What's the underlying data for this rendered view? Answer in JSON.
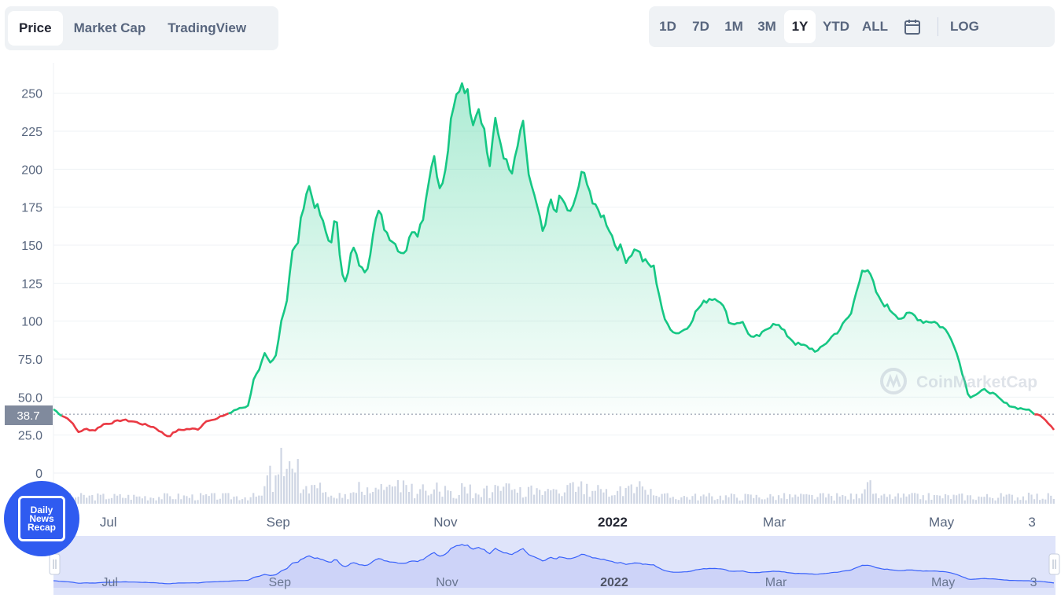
{
  "tabs": [
    {
      "label": "Price",
      "active": true
    },
    {
      "label": "Market Cap",
      "active": false
    },
    {
      "label": "TradingView",
      "active": false
    }
  ],
  "ranges": [
    {
      "label": "1D",
      "active": false
    },
    {
      "label": "7D",
      "active": false
    },
    {
      "label": "1M",
      "active": false
    },
    {
      "label": "3M",
      "active": false
    },
    {
      "label": "1Y",
      "active": true
    },
    {
      "label": "YTD",
      "active": false
    },
    {
      "label": "ALL",
      "active": false
    }
  ],
  "log_label": "LOG",
  "calendar_icon": "calendar-icon",
  "watermark": "CoinMarketCap",
  "badge": {
    "line1": "Daily",
    "line2": "News",
    "line3": "Recap"
  },
  "colors": {
    "up": "#16c784",
    "down": "#ea3943",
    "grid": "#eff2f5",
    "axis_text": "#58667e",
    "navigator_fill": "#dfe4fa",
    "navigator_line": "#3861fb",
    "price_tag": "#808a9d",
    "volume": "#cfd6e4"
  },
  "chart_data": {
    "type": "area",
    "ylim": [
      0,
      270
    ],
    "yticks": [
      "0",
      "25.0",
      "50.0",
      "75.0",
      "100",
      "125",
      "150",
      "175",
      "200",
      "225",
      "250"
    ],
    "ytick_values": [
      0,
      25,
      50,
      75,
      100,
      125,
      150,
      175,
      200,
      225,
      250
    ],
    "xticks": [
      {
        "label": "Jul",
        "date": "2021-07-01",
        "bold": false
      },
      {
        "label": "Sep",
        "date": "2021-09-01",
        "bold": false
      },
      {
        "label": "Nov",
        "date": "2021-11-01",
        "bold": false
      },
      {
        "label": "2022",
        "date": "2022-01-01",
        "bold": true
      },
      {
        "label": "Mar",
        "date": "2022-03-01",
        "bold": false
      },
      {
        "label": "May",
        "date": "2022-05-01",
        "bold": false
      },
      {
        "label": "3",
        "date": "2022-06-03",
        "bold": false
      }
    ],
    "x_range": [
      "2021-06-11",
      "2022-06-11"
    ],
    "baseline_price": 38.7,
    "baseline_label": "38.7",
    "log_scale": false,
    "grid": true,
    "series": [
      {
        "values": [
          [
            "2021-06-11",
            42
          ],
          [
            "2021-06-14",
            38
          ],
          [
            "2021-06-17",
            35
          ],
          [
            "2021-06-20",
            27
          ],
          [
            "2021-06-23",
            29
          ],
          [
            "2021-06-26",
            28
          ],
          [
            "2021-06-29",
            32
          ],
          [
            "2021-07-02",
            33
          ],
          [
            "2021-07-06",
            35
          ],
          [
            "2021-07-10",
            34
          ],
          [
            "2021-07-14",
            32
          ],
          [
            "2021-07-18",
            30
          ],
          [
            "2021-07-21",
            26
          ],
          [
            "2021-07-23",
            24
          ],
          [
            "2021-07-26",
            28
          ],
          [
            "2021-07-30",
            29
          ],
          [
            "2021-08-03",
            29
          ],
          [
            "2021-08-06",
            35
          ],
          [
            "2021-08-09",
            35
          ],
          [
            "2021-08-12",
            38
          ],
          [
            "2021-08-15",
            40
          ],
          [
            "2021-08-18",
            43
          ],
          [
            "2021-08-21",
            44
          ],
          [
            "2021-08-23",
            62
          ],
          [
            "2021-08-25",
            67
          ],
          [
            "2021-08-27",
            78
          ],
          [
            "2021-08-29",
            72
          ],
          [
            "2021-08-31",
            76
          ],
          [
            "2021-09-02",
            100
          ],
          [
            "2021-09-04",
            112
          ],
          [
            "2021-09-06",
            145
          ],
          [
            "2021-09-08",
            150
          ],
          [
            "2021-09-10",
            175
          ],
          [
            "2021-09-12",
            190
          ],
          [
            "2021-09-14",
            178
          ],
          [
            "2021-09-16",
            172
          ],
          [
            "2021-09-18",
            160
          ],
          [
            "2021-09-20",
            150
          ],
          [
            "2021-09-22",
            170
          ],
          [
            "2021-09-24",
            135
          ],
          [
            "2021-09-26",
            125
          ],
          [
            "2021-09-28",
            150
          ],
          [
            "2021-09-30",
            140
          ],
          [
            "2021-10-02",
            132
          ],
          [
            "2021-10-04",
            138
          ],
          [
            "2021-10-06",
            165
          ],
          [
            "2021-10-08",
            172
          ],
          [
            "2021-10-10",
            160
          ],
          [
            "2021-10-12",
            155
          ],
          [
            "2021-10-14",
            150
          ],
          [
            "2021-10-16",
            145
          ],
          [
            "2021-10-18",
            148
          ],
          [
            "2021-10-20",
            162
          ],
          [
            "2021-10-22",
            158
          ],
          [
            "2021-10-24",
            170
          ],
          [
            "2021-10-26",
            195
          ],
          [
            "2021-10-28",
            210
          ],
          [
            "2021-10-30",
            185
          ],
          [
            "2021-11-01",
            198
          ],
          [
            "2021-11-03",
            230
          ],
          [
            "2021-11-05",
            248
          ],
          [
            "2021-11-07",
            258
          ],
          [
            "2021-11-09",
            250
          ],
          [
            "2021-11-11",
            232
          ],
          [
            "2021-11-13",
            242
          ],
          [
            "2021-11-15",
            228
          ],
          [
            "2021-11-17",
            200
          ],
          [
            "2021-11-19",
            232
          ],
          [
            "2021-11-21",
            218
          ],
          [
            "2021-11-23",
            205
          ],
          [
            "2021-11-25",
            195
          ],
          [
            "2021-11-27",
            210
          ],
          [
            "2021-11-29",
            234
          ],
          [
            "2021-12-01",
            200
          ],
          [
            "2021-12-03",
            185
          ],
          [
            "2021-12-05",
            170
          ],
          [
            "2021-12-07",
            155
          ],
          [
            "2021-12-09",
            180
          ],
          [
            "2021-12-11",
            172
          ],
          [
            "2021-12-13",
            182
          ],
          [
            "2021-12-15",
            175
          ],
          [
            "2021-12-17",
            170
          ],
          [
            "2021-12-19",
            185
          ],
          [
            "2021-12-21",
            198
          ],
          [
            "2021-12-23",
            192
          ],
          [
            "2021-12-25",
            175
          ],
          [
            "2021-12-27",
            172
          ],
          [
            "2021-12-29",
            168
          ],
          [
            "2021-12-31",
            160
          ],
          [
            "2022-01-02",
            150
          ],
          [
            "2022-01-04",
            148
          ],
          [
            "2022-01-06",
            140
          ],
          [
            "2022-01-08",
            145
          ],
          [
            "2022-01-10",
            148
          ],
          [
            "2022-01-12",
            140
          ],
          [
            "2022-01-16",
            135
          ],
          [
            "2022-01-20",
            100
          ],
          [
            "2022-01-24",
            92
          ],
          [
            "2022-01-28",
            95
          ],
          [
            "2022-02-01",
            108
          ],
          [
            "2022-02-05",
            115
          ],
          [
            "2022-02-09",
            115
          ],
          [
            "2022-02-13",
            98
          ],
          [
            "2022-02-17",
            100
          ],
          [
            "2022-02-21",
            88
          ],
          [
            "2022-02-25",
            92
          ],
          [
            "2022-03-01",
            100
          ],
          [
            "2022-03-05",
            92
          ],
          [
            "2022-03-09",
            85
          ],
          [
            "2022-03-13",
            83
          ],
          [
            "2022-03-17",
            80
          ],
          [
            "2022-03-21",
            88
          ],
          [
            "2022-03-25",
            95
          ],
          [
            "2022-03-29",
            105
          ],
          [
            "2022-04-02",
            135
          ],
          [
            "2022-04-05",
            130
          ],
          [
            "2022-04-08",
            115
          ],
          [
            "2022-04-12",
            108
          ],
          [
            "2022-04-16",
            102
          ],
          [
            "2022-04-20",
            105
          ],
          [
            "2022-04-24",
            100
          ],
          [
            "2022-04-28",
            100
          ],
          [
            "2022-05-02",
            95
          ],
          [
            "2022-05-05",
            88
          ],
          [
            "2022-05-08",
            70
          ],
          [
            "2022-05-11",
            50
          ],
          [
            "2022-05-14",
            52
          ],
          [
            "2022-05-17",
            55
          ],
          [
            "2022-05-20",
            52
          ],
          [
            "2022-05-24",
            46
          ],
          [
            "2022-05-28",
            43
          ],
          [
            "2022-06-01",
            42
          ],
          [
            "2022-06-04",
            39
          ],
          [
            "2022-06-07",
            37
          ],
          [
            "2022-06-11",
            29
          ]
        ]
      }
    ]
  }
}
